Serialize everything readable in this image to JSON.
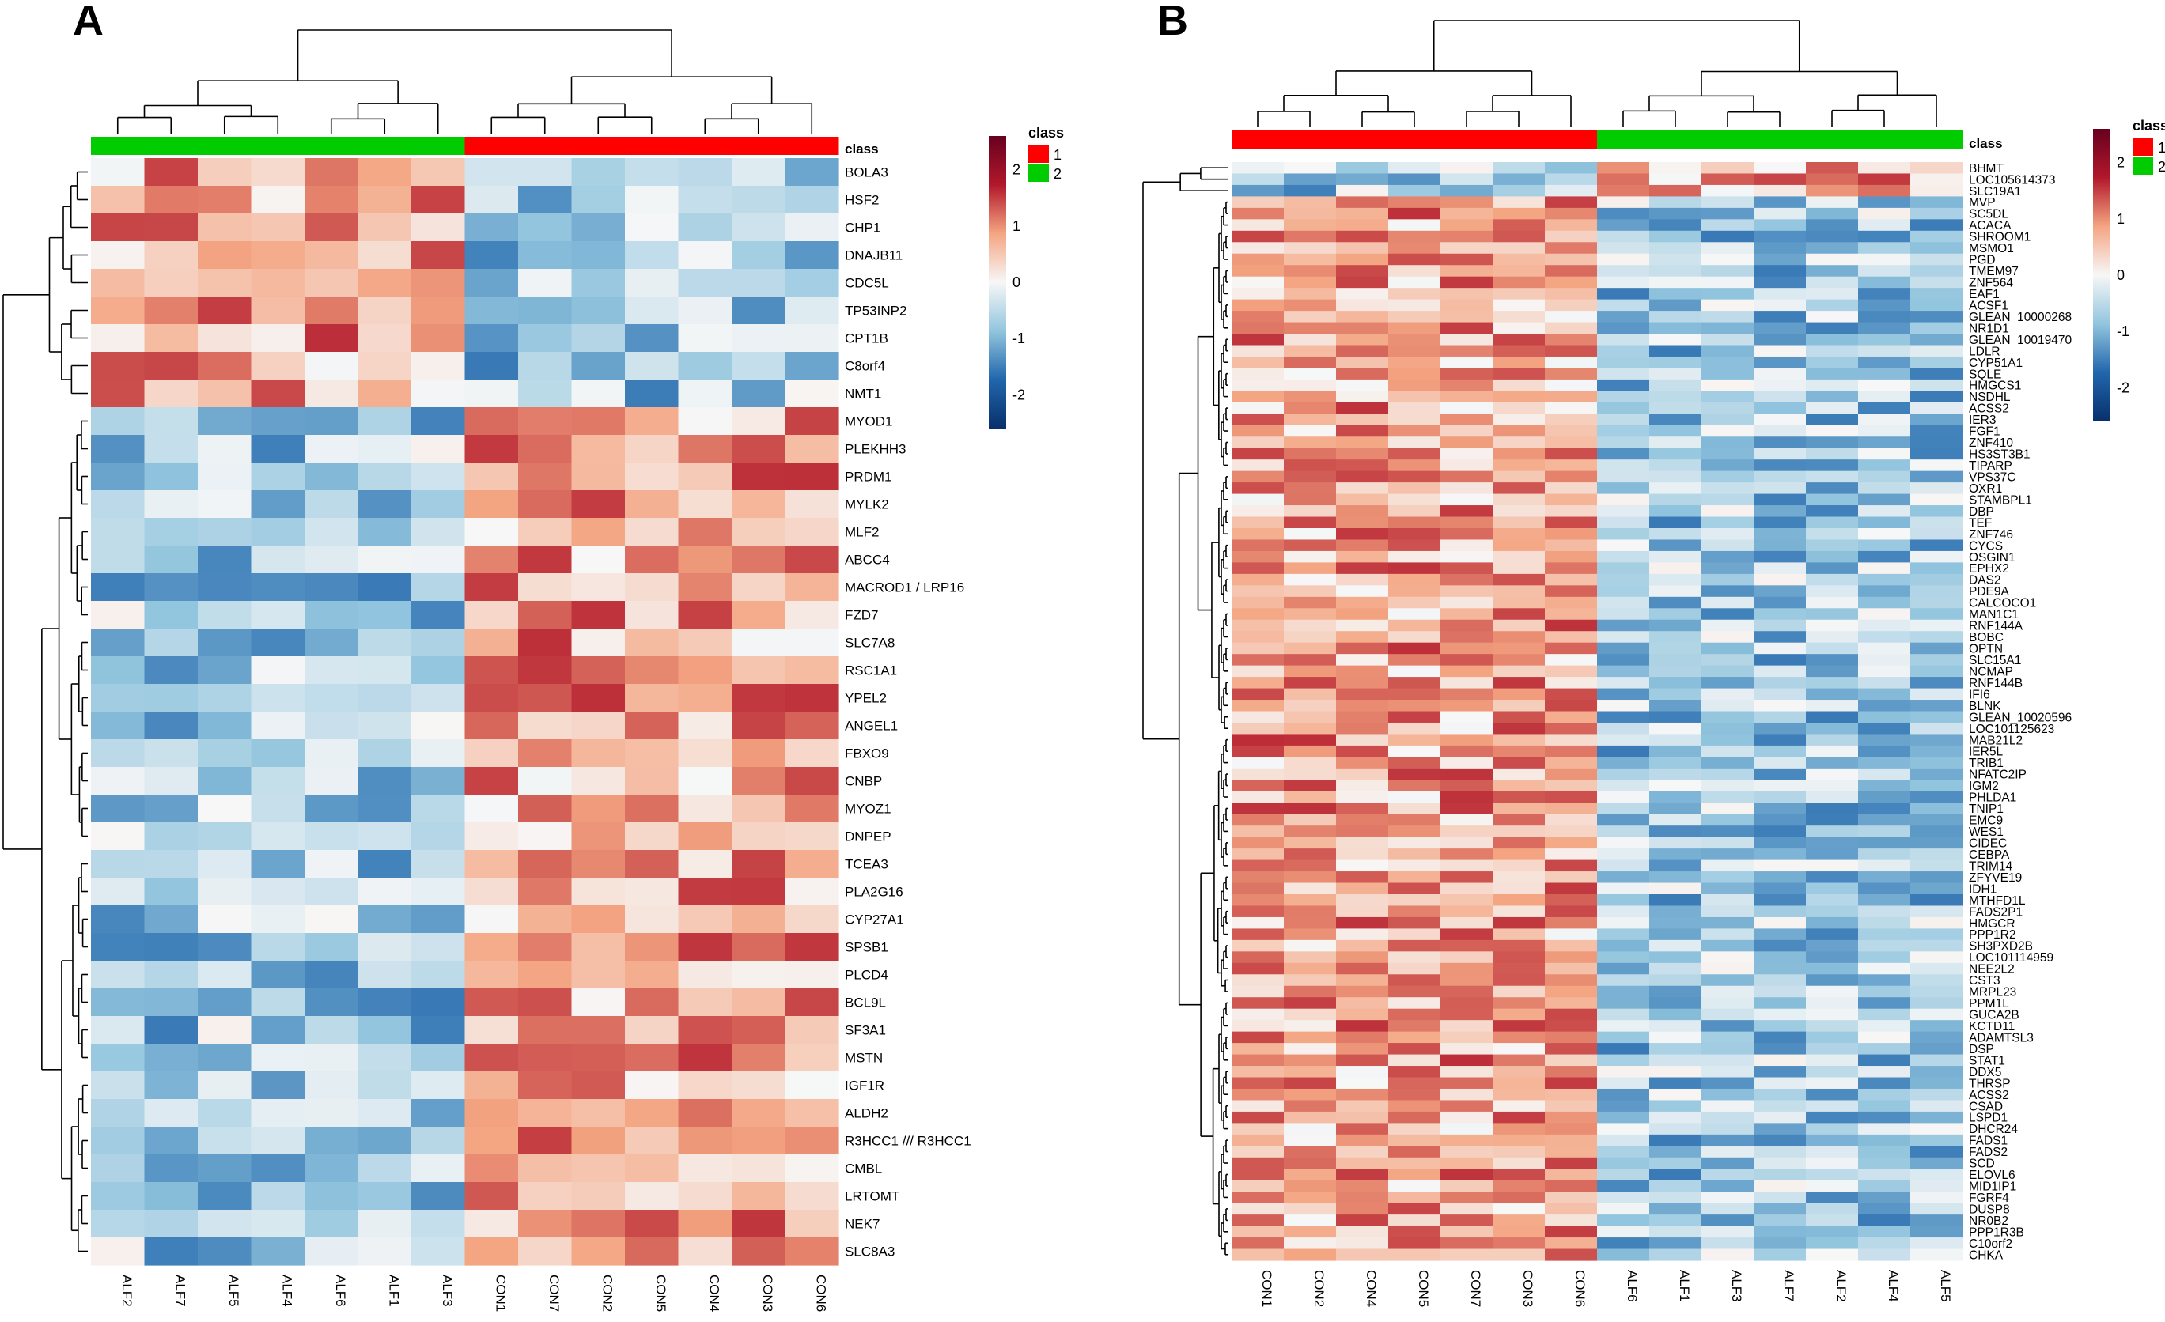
{
  "panels": [
    {
      "panel_label": "A",
      "class_label": "class",
      "samples": [
        "ALF2",
        "ALF7",
        "ALF5",
        "ALF4",
        "ALF6",
        "ALF1",
        "ALF3",
        "CON1",
        "CON7",
        "CON2",
        "CON5",
        "CON4",
        "CON3",
        "CON6"
      ],
      "sample_classes": [
        2,
        2,
        2,
        2,
        2,
        2,
        2,
        1,
        1,
        1,
        1,
        1,
        1,
        1
      ],
      "genes": [
        "BOLA3",
        "HSF2",
        "CHP1",
        "DNAJB11",
        "CDC5L",
        "TP53INP2",
        "CPT1B",
        "C8orf4",
        "NMT1",
        "MYOD1",
        "PLEKHH3",
        "PRDM1",
        "MYLK2",
        "MLF2",
        "ABCC4",
        "MACROD1 / LRP16",
        "FZD7",
        "SLC7A8",
        "RSC1A1",
        "YPEL2",
        "ANGEL1",
        "FBXO9",
        "CNBP",
        "MYOZ1",
        "DNPEP",
        "TCEA3",
        "PLA2G16",
        "CYP27A1",
        "SPSB1",
        "PLCD4",
        "BCL9L",
        "SF3A1",
        "MSTN",
        "IGF1R",
        "ALDH2",
        "R3HCC1 /// R3HCC1",
        "CMBL",
        "LRTOMT",
        "NEK7",
        "SLC8A3"
      ],
      "legend": {
        "title": "class",
        "entries": [
          {
            "label": "1",
            "color": "#ff0000"
          },
          {
            "label": "2",
            "color": "#00cc00"
          }
        ],
        "scale_ticks": [
          "2",
          "1",
          "0",
          "-1",
          "-2"
        ]
      }
    },
    {
      "panel_label": "B",
      "class_label": "class",
      "samples": [
        "CON1",
        "CON2",
        "CON4",
        "CON5",
        "CON7",
        "CON3",
        "CON6",
        "ALF6",
        "ALF1",
        "ALF3",
        "ALF7",
        "ALF2",
        "ALF4",
        "ALF5"
      ],
      "sample_classes": [
        1,
        1,
        1,
        1,
        1,
        1,
        1,
        2,
        2,
        2,
        2,
        2,
        2,
        2
      ],
      "genes": [
        "BHMT",
        "LOC105614373",
        "SLC19A1",
        "MVP",
        "SC5DL",
        "ACACA",
        "SHROOM1",
        "MSMO1",
        "PGD",
        "TMEM97",
        "ZNF564",
        "EAF1",
        "ACSF1",
        "GLEAN_10000268",
        "NR1D1",
        "GLEAN_10019470",
        "LDLR",
        "CYP51A1",
        "SQLE",
        "HMGCS1",
        "NSDHL",
        "ACSS2",
        "IER3",
        "FGF1",
        "ZNF410",
        "HS3ST3B1",
        "TIPARP",
        "VPS37C",
        "OXR1",
        "STAMBPL1",
        "DBP",
        "TEF",
        "ZNF746",
        "CYCS",
        "OSGIN1",
        "EPHX2",
        "DAS2",
        "PDE9A",
        "CALCOCO1",
        "MAN1C1",
        "RNF144A",
        "BOBC",
        "OPTN",
        "SLC15A1",
        "NCMAP",
        "RNF144B",
        "IFI6",
        "BLNK",
        "GLEAN_10020596",
        "LOC101125623",
        "MAB21L2",
        "IER5L",
        "TRIB1",
        "NFATC2IP",
        "IGM2",
        "PHLDA1",
        "TNIP1",
        "EMC9",
        "WES1",
        "CIDEC",
        "CEBPA",
        "TRIM14",
        "ZFYVE19",
        "IDH1",
        "MTHFD1L",
        "FADS2P1",
        "HMGCR",
        "PPP1R2",
        "SH3PXD2B",
        "LOC101114959",
        "NEE2L2",
        "CST3",
        "MRPL23",
        "PPM1L",
        "GUCA2B",
        "KCTD11",
        "ADAMTSL3",
        "DSP",
        "STAT1",
        "DDX5",
        "THRSP",
        "ACSS2",
        "CSAD",
        "LSPD1",
        "DHCR24",
        "FADS1",
        "FADS2",
        "SCD",
        "ELOVL6",
        "MID1IP1",
        "FGRF4",
        "DUSP8",
        "NR0B2",
        "PPP1R3B",
        "C10orf2",
        "CHKA"
      ],
      "legend": {
        "title": "class",
        "entries": [
          {
            "label": "1",
            "color": "#ff0000"
          },
          {
            "label": "2",
            "color": "#00cc00"
          }
        ],
        "scale_ticks": [
          "2",
          "1",
          "0",
          "-1",
          "-2"
        ]
      }
    }
  ],
  "chart_data": [
    {
      "type": "heatmap",
      "title": "A",
      "rows": [
        "BOLA3",
        "HSF2",
        "CHP1",
        "DNAJB11",
        "CDC5L",
        "TP53INP2",
        "CPT1B",
        "C8orf4",
        "NMT1",
        "MYOD1",
        "PLEKHH3",
        "PRDM1",
        "MYLK2",
        "MLF2",
        "ABCC4",
        "MACROD1 / LRP16",
        "FZD7",
        "SLC7A8",
        "RSC1A1",
        "YPEL2",
        "ANGEL1",
        "FBXO9",
        "CNBP",
        "MYOZ1",
        "DNPEP",
        "TCEA3",
        "PLA2G16",
        "CYP27A1",
        "SPSB1",
        "PLCD4",
        "BCL9L",
        "SF3A1",
        "MSTN",
        "IGF1R",
        "ALDH2",
        "R3HCC1 /// R3HCC1",
        "CMBL",
        "LRTOMT",
        "NEK7",
        "SLC8A3"
      ],
      "columns": [
        "ALF2",
        "ALF7",
        "ALF5",
        "ALF4",
        "ALF6",
        "ALF1",
        "ALF3",
        "CON1",
        "CON7",
        "CON2",
        "CON5",
        "CON4",
        "CON3",
        "CON6"
      ],
      "column_class": [
        2,
        2,
        2,
        2,
        2,
        2,
        2,
        1,
        1,
        1,
        1,
        1,
        1,
        1
      ],
      "up_block": {
        "rows": 9,
        "high_group": "ALF"
      },
      "color_range": [
        -2,
        2
      ],
      "colormap": [
        "#08306b",
        "#2166ac",
        "#92c5de",
        "#f7f7f7",
        "#f4a582",
        "#b2182b",
        "#67001f"
      ]
    },
    {
      "type": "heatmap",
      "title": "B",
      "rows_count": 96,
      "columns": [
        "CON1",
        "CON2",
        "CON4",
        "CON5",
        "CON7",
        "CON3",
        "CON6",
        "ALF6",
        "ALF1",
        "ALF3",
        "ALF7",
        "ALF2",
        "ALF4",
        "ALF5"
      ],
      "column_class": [
        1,
        1,
        1,
        1,
        1,
        1,
        1,
        2,
        2,
        2,
        2,
        2,
        2,
        2
      ],
      "up_block": {
        "rows": 3,
        "high_group": "ALF"
      },
      "color_range": [
        -2,
        2
      ],
      "colormap": [
        "#08306b",
        "#2166ac",
        "#92c5de",
        "#f7f7f7",
        "#f4a582",
        "#b2182b",
        "#67001f"
      ]
    }
  ]
}
